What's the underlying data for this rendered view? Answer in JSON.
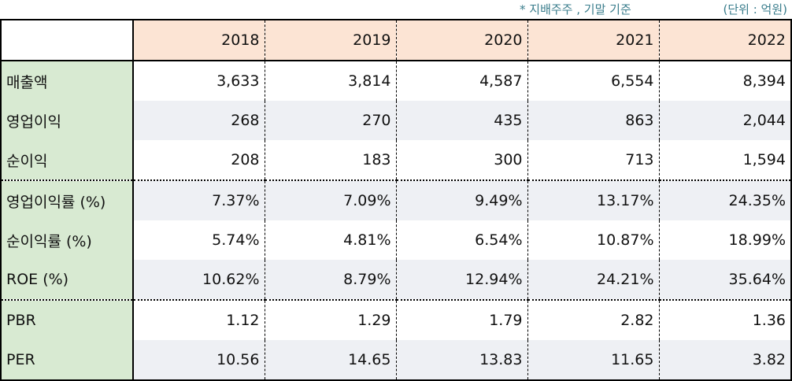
{
  "notes": {
    "basis": "* 지배주주 , 기말 기준",
    "unit": "(단위 : 억원)"
  },
  "table": {
    "years": [
      "2018",
      "2019",
      "2020",
      "2021",
      "2022"
    ],
    "rows": [
      {
        "label": "매출액",
        "values": [
          "3,633",
          "3,814",
          "4,587",
          "6,554",
          "8,394"
        ]
      },
      {
        "label": "영업이익",
        "values": [
          "268",
          "270",
          "435",
          "863",
          "2,044"
        ]
      },
      {
        "label": "순이익",
        "values": [
          "208",
          "183",
          "300",
          "713",
          "1,594"
        ]
      },
      {
        "label": "영업이익률 (%)",
        "values": [
          "7.37%",
          "7.09%",
          "9.49%",
          "13.17%",
          "24.35%"
        ]
      },
      {
        "label": "순이익률 (%)",
        "values": [
          "5.74%",
          "4.81%",
          "6.54%",
          "10.87%",
          "18.99%"
        ]
      },
      {
        "label": "ROE (%)",
        "values": [
          "10.62%",
          "8.79%",
          "12.94%",
          "24.21%",
          "35.64%"
        ]
      },
      {
        "label": "PBR",
        "values": [
          "1.12",
          "1.29",
          "1.79",
          "2.82",
          "1.36"
        ]
      },
      {
        "label": "PER",
        "values": [
          "10.56",
          "14.65",
          "13.83",
          "11.65",
          "3.82"
        ]
      }
    ]
  }
}
